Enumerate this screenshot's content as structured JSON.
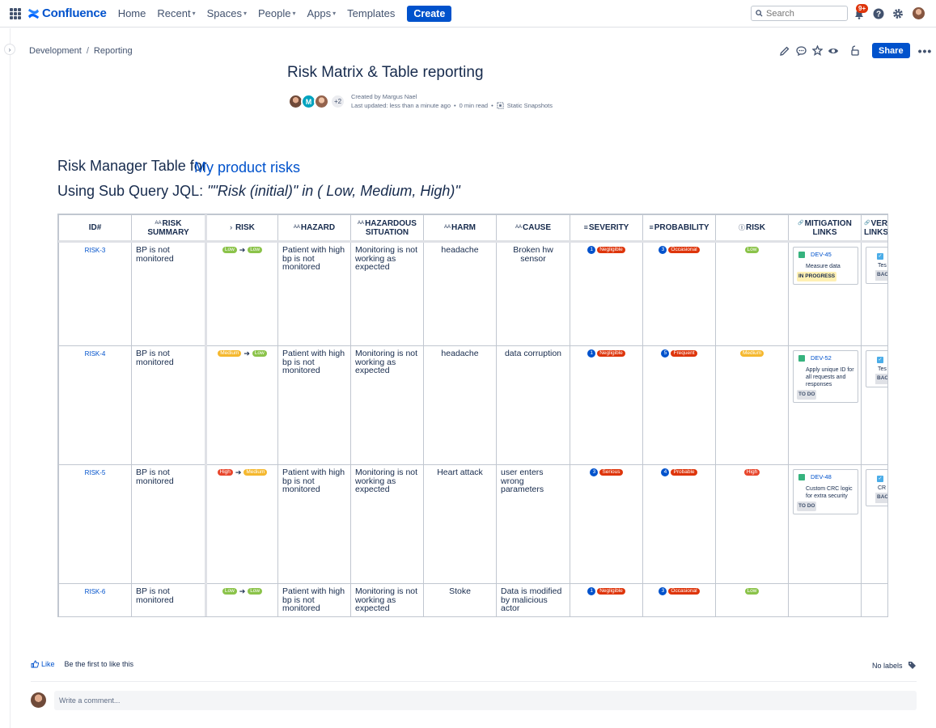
{
  "nav": {
    "logo": "Confluence",
    "items": [
      {
        "label": "Home",
        "dropdown": false
      },
      {
        "label": "Recent",
        "dropdown": true
      },
      {
        "label": "Spaces",
        "dropdown": true
      },
      {
        "label": "People",
        "dropdown": true
      },
      {
        "label": "Apps",
        "dropdown": true
      },
      {
        "label": "Templates",
        "dropdown": false
      }
    ],
    "create_label": "Create",
    "search_placeholder": "Search",
    "notification_badge": "9+"
  },
  "breadcrumb": [
    "Development",
    "Reporting"
  ],
  "actions": {
    "share_label": "Share"
  },
  "page": {
    "title": "Risk Matrix & Table reporting",
    "created_by": "Created by Margus Nael",
    "avatar_initial": "M",
    "avatar_more": "+2",
    "last_updated": "Last updated: less than a minute ago",
    "read_time": "0 min read",
    "snapshots": "Static Snapshots"
  },
  "heading1": {
    "prefix": "Risk Manager Table for",
    "link": "My product risks"
  },
  "heading2": {
    "prefix": "Using Sub Query JQL: ",
    "query": "\"\"Risk (initial)\" in ( Low, Medium, High)\""
  },
  "table": {
    "columns": [
      {
        "label": "ID#",
        "icon": ""
      },
      {
        "label": "Risk Summary",
        "icon": "Aa"
      },
      {
        "label": "Risk",
        "icon": "›"
      },
      {
        "label": "Hazard",
        "icon": "Aa"
      },
      {
        "label": "Hazardous Situation",
        "icon": "Aa"
      },
      {
        "label": "Harm",
        "icon": "Aa"
      },
      {
        "label": "Cause",
        "icon": "Aa"
      },
      {
        "label": "Severity",
        "icon": "≡"
      },
      {
        "label": "Probability",
        "icon": "≡"
      },
      {
        "label": "Risk",
        "icon": "ⓘ"
      },
      {
        "label": "Mitigation Links",
        "icon": "🔗"
      },
      {
        "label": "Verification Links",
        "icon": "🔗"
      }
    ],
    "rows": [
      {
        "id": "RISK-3",
        "summary": "BP is not monitored",
        "risk_from": "Low",
        "risk_to": "Low",
        "hazard": "Patient with high bp is not monitored",
        "situation": "Monitoring is not working as expected",
        "harm": "headache",
        "cause": "Broken hw sensor",
        "severity_num": "1",
        "severity": "Negligible",
        "probability_num": "3",
        "probability": "Occasional",
        "risk_level": "Low",
        "mitigation": {
          "key": "DEV-45",
          "summary": "Measure data",
          "status": "IN PROGRESS"
        },
        "verification": {
          "summary": "Tes alg",
          "status": "BAC"
        }
      },
      {
        "id": "RISK-4",
        "summary": "BP is not monitored",
        "risk_from": "Medium",
        "risk_to": "Low",
        "hazard": "Patient with high bp is not monitored",
        "situation": "Monitoring is not working as expected",
        "harm": "headache",
        "cause": "data corruption",
        "severity_num": "1",
        "severity": "Negligible",
        "probability_num": "5",
        "probability": "Frequent",
        "risk_level": "Medium",
        "mitigation": {
          "key": "DEV-52",
          "summary": "Apply unique ID for all requests and responses",
          "status": "TO DO"
        },
        "verification": {
          "summary": "Tes id r",
          "status": "BAC"
        }
      },
      {
        "id": "RISK-5",
        "summary": "BP is not monitored",
        "risk_from": "High",
        "risk_to": "Medium",
        "hazard": "Patient with high bp is not monitored",
        "situation": "Monitoring is not working as expected",
        "harm": "Heart attack",
        "cause": "user enters wrong parameters",
        "severity_num": "3",
        "severity": "Serious",
        "probability_num": "4",
        "probability": "Probable",
        "risk_level": "High",
        "mitigation": {
          "key": "DEV-48",
          "summary": "Custom CRC logic for extra security",
          "status": "TO DO"
        },
        "verification": {
          "summary": "CR tes",
          "status": "BAC"
        }
      },
      {
        "id": "RISK-6",
        "summary": "BP is not monitored",
        "risk_from": "Low",
        "risk_to": "Low",
        "hazard": "Patient with high bp is not monitored",
        "situation": "Monitoring is not working as expected",
        "harm": "Stoke",
        "cause": "Data is modified by malicious actor",
        "severity_num": "1",
        "severity": "Negligible",
        "probability_num": "3",
        "probability": "Occasional",
        "risk_level": "Low"
      }
    ]
  },
  "footer": {
    "like_label": "Like",
    "like_first": "Be the first to like this",
    "no_labels": "No labels",
    "comment_placeholder": "Write a comment..."
  }
}
